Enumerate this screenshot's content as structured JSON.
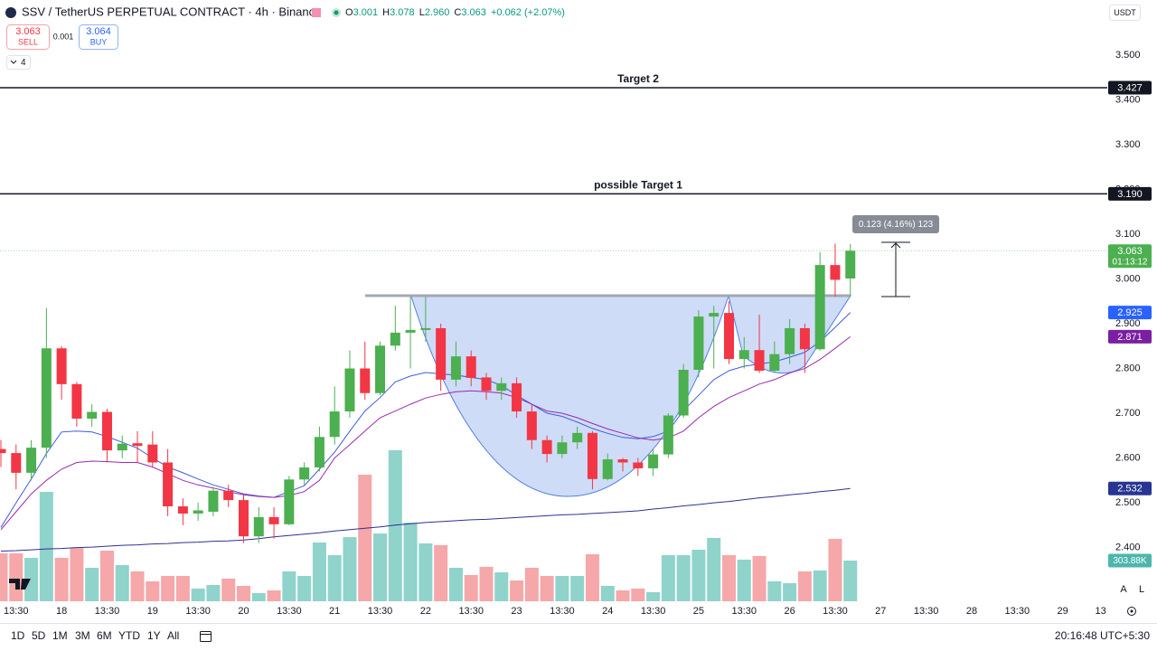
{
  "header": {
    "symbol": "SSV / TetherUS PERPETUAL CONTRACT · 4h · Binance",
    "ohlc": [
      {
        "key": "O",
        "value": "3.001"
      },
      {
        "key": "H",
        "value": "3.078"
      },
      {
        "key": "L",
        "value": "2.960"
      },
      {
        "key": "C",
        "value": "3.063"
      }
    ],
    "change": "+0.062 (+2.07%)",
    "sell_price": "3.063",
    "sell": "SELL",
    "spread": "0.001",
    "buy_price": "3.064",
    "buy": "BUY",
    "indicators": "4",
    "currency": "USDT"
  },
  "chart_data": {
    "type": "candlestick",
    "x": [
      0,
      1,
      2,
      3,
      4,
      5,
      6,
      7,
      8,
      9,
      10,
      11,
      12,
      13,
      14,
      15,
      16,
      17,
      18,
      19,
      20,
      21,
      22,
      23,
      24,
      25,
      26,
      27,
      28,
      29,
      30,
      31,
      32,
      33,
      34,
      35,
      36,
      37,
      38,
      39,
      40,
      41,
      42,
      43,
      44,
      45,
      46,
      47,
      48,
      49,
      50,
      51,
      52,
      53,
      54,
      55,
      56
    ],
    "open": [
      2.62,
      2.611,
      2.567,
      2.623,
      2.845,
      2.765,
      2.688,
      2.703,
      2.617,
      2.633,
      2.63,
      2.59,
      2.492,
      2.476,
      2.48,
      2.527,
      2.506,
      2.425,
      2.468,
      2.452,
      2.552,
      2.579,
      2.647,
      2.704,
      2.8,
      2.745,
      2.851,
      2.88,
      2.886,
      2.89,
      2.775,
      2.827,
      2.78,
      2.75,
      2.767,
      2.704,
      2.64,
      2.609,
      2.635,
      2.656,
      2.553,
      2.597,
      2.59,
      2.577,
      2.608,
      2.695,
      2.797,
      2.916,
      2.924,
      2.821,
      2.841,
      2.795,
      2.832,
      2.89,
      2.843,
      3.031,
      3.001
    ],
    "high": [
      2.64,
      2.63,
      2.64,
      2.935,
      2.85,
      2.77,
      2.72,
      2.71,
      2.65,
      2.66,
      2.66,
      2.62,
      2.51,
      2.5,
      2.535,
      2.54,
      2.52,
      2.49,
      2.49,
      2.56,
      2.59,
      2.67,
      2.76,
      2.84,
      2.86,
      2.86,
      2.94,
      2.96,
      2.96,
      2.9,
      2.86,
      2.84,
      2.79,
      2.78,
      2.78,
      2.72,
      2.65,
      2.65,
      2.67,
      2.66,
      2.61,
      2.6,
      2.6,
      2.62,
      2.7,
      2.81,
      2.93,
      2.94,
      2.95,
      2.87,
      2.92,
      2.86,
      2.91,
      2.9,
      3.06,
      3.079,
      3.078
    ],
    "low": [
      2.58,
      2.53,
      2.55,
      2.6,
      2.73,
      2.67,
      2.67,
      2.59,
      2.6,
      2.59,
      2.58,
      2.47,
      2.45,
      2.46,
      2.47,
      2.49,
      2.41,
      2.41,
      2.42,
      2.45,
      2.54,
      2.57,
      2.63,
      2.69,
      2.73,
      2.74,
      2.84,
      2.8,
      2.86,
      2.75,
      2.76,
      2.76,
      2.73,
      2.73,
      2.69,
      2.62,
      2.59,
      2.6,
      2.62,
      2.53,
      2.55,
      2.57,
      2.56,
      2.56,
      2.6,
      2.69,
      2.78,
      2.8,
      2.81,
      2.8,
      2.79,
      2.79,
      2.81,
      2.79,
      2.84,
      2.96,
      2.96
    ],
    "close": [
      2.611,
      2.567,
      2.623,
      2.845,
      2.765,
      2.688,
      2.703,
      2.617,
      2.632,
      2.627,
      2.59,
      2.492,
      2.476,
      2.483,
      2.527,
      2.506,
      2.425,
      2.468,
      2.452,
      2.552,
      2.579,
      2.647,
      2.704,
      2.8,
      2.745,
      2.851,
      2.88,
      2.886,
      2.89,
      2.775,
      2.827,
      2.779,
      2.75,
      2.767,
      2.704,
      2.64,
      2.609,
      2.635,
      2.656,
      2.553,
      2.597,
      2.59,
      2.577,
      2.608,
      2.695,
      2.797,
      2.916,
      2.924,
      2.821,
      2.841,
      2.795,
      2.832,
      2.89,
      2.843,
      3.031,
      2.998,
      3.063
    ],
    "volume": [
      358,
      358,
      324,
      817,
      324,
      398,
      250,
      378,
      270,
      223,
      149,
      189,
      189,
      95,
      122,
      169,
      115,
      61,
      81,
      223,
      189,
      439,
      344,
      479,
      945,
      506,
      1128,
      587,
      432,
      419,
      250,
      196,
      257,
      216,
      155,
      250,
      189,
      189,
      189,
      351,
      115,
      81,
      95,
      68,
      344,
      344,
      385,
      473,
      344,
      311,
      338,
      149,
      135,
      223,
      230,
      466,
      303.88
    ],
    "volume_label": "303.88K",
    "volume_lim": [
      0,
      4490
    ],
    "up_color": "#4caf50",
    "down_color": "#f23645",
    "volume_up_color": "#8fd3cb",
    "volume_down_color": "#f5a7a9",
    "volume_badge_color": "#4db6ac",
    "lines": [
      {
        "color": "#3d5ce0",
        "badge_color": "#2962ff",
        "values": [
          2.445,
          2.5,
          2.553,
          2.61,
          2.658,
          2.66,
          2.658,
          2.648,
          2.635,
          2.622,
          2.6,
          2.58,
          2.567,
          2.553,
          2.54,
          2.53,
          2.52,
          2.515,
          2.512,
          2.525,
          2.538,
          2.575,
          2.613,
          2.66,
          2.705,
          2.735,
          2.77,
          2.783,
          2.791,
          2.788,
          2.785,
          2.78,
          2.775,
          2.762,
          2.74,
          2.72,
          2.7,
          2.693,
          2.68,
          2.666,
          2.655,
          2.646,
          2.643,
          2.648,
          2.66,
          2.706,
          2.74,
          2.775,
          2.795,
          2.805,
          2.81,
          2.815,
          2.825,
          2.836,
          2.86,
          2.892,
          2.925
        ]
      },
      {
        "color": "#9c27b0",
        "badge_color": "#7b1fa2",
        "values": [
          2.44,
          2.48,
          2.52,
          2.55,
          2.575,
          2.59,
          2.593,
          2.592,
          2.59,
          2.59,
          2.58,
          2.565,
          2.55,
          2.54,
          2.533,
          2.525,
          2.518,
          2.514,
          2.512,
          2.516,
          2.525,
          2.55,
          2.6,
          2.63,
          2.66,
          2.69,
          2.705,
          2.72,
          2.734,
          2.742,
          2.748,
          2.75,
          2.748,
          2.745,
          2.735,
          2.72,
          2.705,
          2.7,
          2.69,
          2.677,
          2.665,
          2.655,
          2.645,
          2.64,
          2.645,
          2.66,
          2.69,
          2.715,
          2.735,
          2.75,
          2.765,
          2.775,
          2.79,
          2.8,
          2.82,
          2.845,
          2.871
        ]
      },
      {
        "color": "#2e3192",
        "badge_color": "#283593",
        "values": [
          2.392,
          2.393,
          2.395,
          2.397,
          2.398,
          2.4,
          2.401,
          2.403,
          2.405,
          2.406,
          2.408,
          2.409,
          2.411,
          2.412,
          2.414,
          2.415,
          2.417,
          2.42,
          2.424,
          2.427,
          2.43,
          2.433,
          2.437,
          2.44,
          2.443,
          2.446,
          2.45,
          2.453,
          2.456,
          2.458,
          2.46,
          2.462,
          2.463,
          2.465,
          2.467,
          2.469,
          2.471,
          2.473,
          2.474,
          2.476,
          2.478,
          2.48,
          2.482,
          2.486,
          2.489,
          2.493,
          2.496,
          2.5,
          2.503,
          2.507,
          2.511,
          2.514,
          2.518,
          2.521,
          2.525,
          2.528,
          2.532
        ]
      }
    ],
    "hlines": [
      {
        "name": "Target 2",
        "value": 3.427,
        "value_label": "3.427"
      },
      {
        "name": "possible Target 1",
        "value": 3.19,
        "value_label": "3.190"
      }
    ],
    "countdown": "01:13:12",
    "measure": "0.123 (4.16%) 123",
    "xlim": [
      -0.06,
      72.94
    ],
    "xticks": [
      {
        "value": 1,
        "label": "13:30"
      },
      {
        "value": 4,
        "label": "18"
      },
      {
        "value": 7,
        "label": "13:30"
      },
      {
        "value": 10,
        "label": "19"
      },
      {
        "value": 13,
        "label": "13:30"
      },
      {
        "value": 16,
        "label": "20"
      },
      {
        "value": 19,
        "label": "13:30"
      },
      {
        "value": 22,
        "label": "21"
      },
      {
        "value": 25,
        "label": "13:30"
      },
      {
        "value": 28,
        "label": "22"
      },
      {
        "value": 31,
        "label": "13:30"
      },
      {
        "value": 34,
        "label": "23"
      },
      {
        "value": 37,
        "label": "13:30"
      },
      {
        "value": 40,
        "label": "24"
      },
      {
        "value": 43,
        "label": "13:30"
      },
      {
        "value": 46,
        "label": "25"
      },
      {
        "value": 49,
        "label": "13:30"
      },
      {
        "value": 52,
        "label": "26"
      },
      {
        "value": 55,
        "label": "13:30"
      },
      {
        "value": 58,
        "label": "27"
      },
      {
        "value": 61,
        "label": "13:30"
      },
      {
        "value": 64,
        "label": "28"
      },
      {
        "value": 67,
        "label": "13:30"
      },
      {
        "value": 70,
        "label": "29"
      },
      {
        "value": 72.5,
        "label": "13"
      }
    ],
    "ylim": [
      2.28,
      3.623
    ],
    "yticks": [
      {
        "value": 2.4,
        "label": "2.400"
      },
      {
        "value": 2.5,
        "label": "2.500"
      },
      {
        "value": 2.6,
        "label": "2.600"
      },
      {
        "value": 2.7,
        "label": "2.700"
      },
      {
        "value": 2.8,
        "label": "2.800"
      },
      {
        "value": 2.9,
        "label": "2.900"
      },
      {
        "value": 3.0,
        "label": "3.000"
      },
      {
        "value": 3.1,
        "label": "3.100"
      },
      {
        "value": 3.2,
        "label": "3.200"
      },
      {
        "value": 3.3,
        "label": "3.300"
      },
      {
        "value": 3.4,
        "label": "3.400"
      },
      {
        "value": 3.5,
        "label": "3.500"
      }
    ],
    "grid": false
  },
  "toolbar": {
    "ranges": [
      "1D",
      "5D",
      "1M",
      "3M",
      "6M",
      "YTD",
      "1Y",
      "All"
    ],
    "clock": "20:16:48 UTC+5:30",
    "scale_buttons": [
      "A",
      "L"
    ]
  }
}
